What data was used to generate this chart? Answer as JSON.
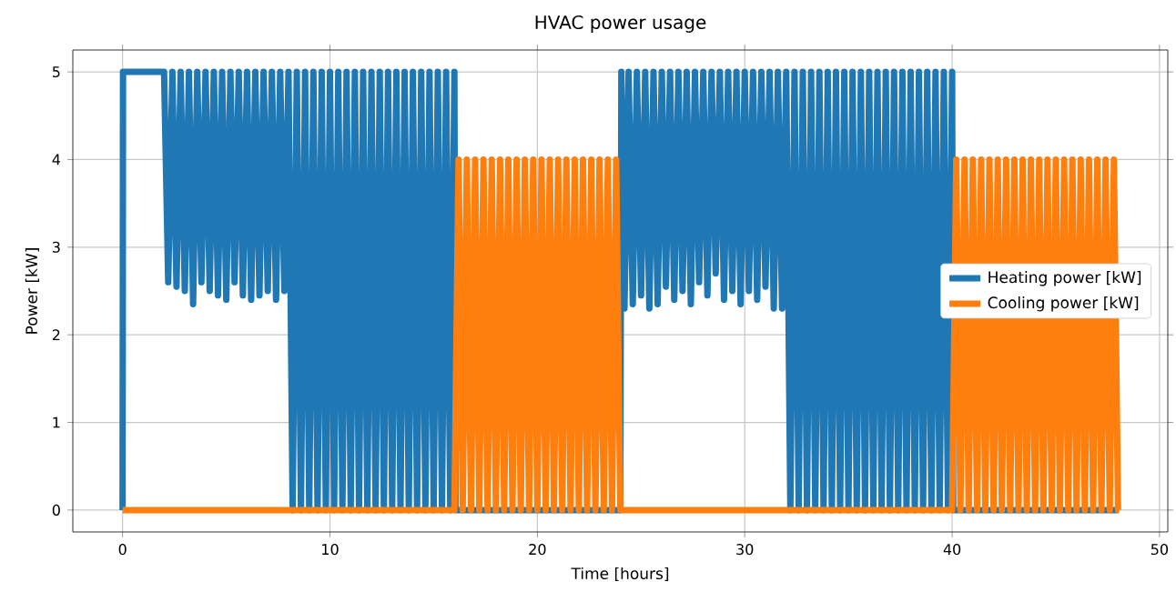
{
  "chart_data": {
    "type": "line",
    "title": "HVAC power usage",
    "xlabel": "Time [hours]",
    "ylabel": "Power [kW]",
    "xlim": [
      -2.4,
      50.4
    ],
    "ylim": [
      -0.25,
      5.25
    ],
    "xticks": [
      0,
      10,
      20,
      30,
      40,
      50
    ],
    "yticks": [
      0,
      1,
      2,
      3,
      4,
      5
    ],
    "grid": true,
    "legend": "right",
    "marker": "none",
    "line_style": "solid",
    "series": [
      {
        "name": "Heating power [kW]",
        "color": "#1f77b4",
        "x": [
          0,
          0.02,
          2,
          2.2,
          2.4,
          2.6,
          2.8,
          3,
          3.2,
          3.4,
          3.6,
          3.8,
          4,
          4.2,
          4.4,
          4.6,
          4.8,
          5,
          5.2,
          5.4,
          5.6,
          5.8,
          6,
          6.2,
          6.4,
          6.6,
          6.8,
          7,
          7.2,
          7.4,
          7.6,
          7.8,
          8,
          8.2,
          8.4,
          8.6,
          8.8,
          9,
          9.2,
          9.4,
          9.6,
          9.8,
          10,
          10.2,
          10.4,
          10.6,
          10.8,
          11,
          11.2,
          11.4,
          11.6,
          11.8,
          12,
          12.2,
          12.4,
          12.6,
          12.8,
          13,
          13.2,
          13.4,
          13.6,
          13.8,
          14,
          14.2,
          14.4,
          14.6,
          14.8,
          15,
          15.2,
          15.4,
          15.6,
          15.8,
          16,
          16.05,
          24,
          24.05,
          24.2,
          24.4,
          24.6,
          24.8,
          25,
          25.2,
          25.4,
          25.6,
          25.8,
          26,
          26.2,
          26.4,
          26.6,
          26.8,
          27,
          27.2,
          27.4,
          27.6,
          27.8,
          28,
          28.2,
          28.4,
          28.6,
          28.8,
          29,
          29.2,
          29.4,
          29.6,
          29.8,
          30,
          30.2,
          30.4,
          30.6,
          30.8,
          31,
          31.2,
          31.4,
          31.6,
          31.8,
          32,
          32.2,
          32.4,
          32.6,
          32.8,
          33,
          33.2,
          33.4,
          33.6,
          33.8,
          34,
          34.2,
          34.4,
          34.6,
          34.8,
          35,
          35.2,
          35.4,
          35.6,
          35.8,
          36,
          36.2,
          36.4,
          36.6,
          36.8,
          37,
          37.2,
          37.4,
          37.6,
          37.8,
          38,
          38.2,
          38.4,
          38.6,
          38.8,
          39,
          39.2,
          39.4,
          39.6,
          39.8,
          40,
          40.05,
          48
        ],
        "values": [
          0,
          5,
          5,
          2.6,
          5,
          2.55,
          5,
          2.5,
          5,
          2.35,
          5,
          2.6,
          5,
          2.5,
          5,
          2.45,
          5,
          2.4,
          5,
          2.6,
          5,
          2.45,
          5,
          2.4,
          5,
          2.45,
          5,
          2.5,
          5,
          2.4,
          5,
          2.5,
          5,
          0,
          5,
          0,
          5,
          0,
          5,
          0,
          5,
          0,
          5,
          0,
          5,
          0,
          5,
          0,
          5,
          0,
          5,
          0,
          5,
          0,
          5,
          0,
          5,
          0,
          5,
          0,
          5,
          0,
          5,
          0,
          5,
          0,
          5,
          0,
          5,
          0,
          5,
          0,
          5,
          0,
          0,
          5,
          2.3,
          5,
          2.35,
          5,
          2.45,
          5,
          2.3,
          5,
          2.35,
          5,
          2.55,
          5,
          2.4,
          5,
          2.5,
          5,
          2.35,
          5,
          2.6,
          5,
          2.45,
          5,
          2.7,
          5,
          2.4,
          5,
          2.5,
          5,
          2.35,
          5,
          2.5,
          5,
          2.4,
          5,
          2.55,
          5,
          2.3,
          5,
          2.3,
          5,
          0,
          5,
          0,
          5,
          0,
          5,
          0,
          5,
          0,
          5,
          0,
          5,
          0,
          5,
          0,
          5,
          0,
          5,
          0,
          5,
          0,
          5,
          0,
          5,
          0,
          5,
          0,
          5,
          0,
          5,
          0,
          5,
          0,
          5,
          0,
          5,
          0,
          5,
          0,
          5,
          0,
          0
        ]
      },
      {
        "name": "Cooling power [kW]",
        "color": "#ff7f0e",
        "x": [
          0,
          16,
          16.2,
          16.4,
          16.6,
          16.8,
          17,
          17.2,
          17.4,
          17.6,
          17.8,
          18,
          18.2,
          18.4,
          18.6,
          18.8,
          19,
          19.2,
          19.4,
          19.6,
          19.8,
          20,
          20.2,
          20.4,
          20.6,
          20.8,
          21,
          21.2,
          21.4,
          21.6,
          21.8,
          22,
          22.2,
          22.4,
          22.6,
          22.8,
          23,
          23.2,
          23.4,
          23.6,
          23.8,
          24,
          24.05,
          40,
          40.2,
          40.4,
          40.6,
          40.8,
          41,
          41.2,
          41.4,
          41.6,
          41.8,
          42,
          42.2,
          42.4,
          42.6,
          42.8,
          43,
          43.2,
          43.4,
          43.6,
          43.8,
          44,
          44.2,
          44.4,
          44.6,
          44.8,
          45,
          45.2,
          45.4,
          45.6,
          45.8,
          46,
          46.2,
          46.4,
          46.6,
          46.8,
          47,
          47.2,
          47.4,
          47.6,
          47.8,
          48,
          48.05
        ],
        "values": [
          0,
          0,
          4,
          0,
          4,
          0,
          4,
          0,
          4,
          0,
          4,
          0,
          4,
          0,
          4,
          0,
          4,
          0,
          4,
          0,
          4,
          0,
          4,
          0,
          4,
          0,
          4,
          0,
          4,
          0,
          4,
          0,
          4,
          0,
          4,
          0,
          4,
          0,
          4,
          0,
          4,
          0,
          0,
          0,
          4,
          0,
          4,
          0,
          4,
          0,
          4,
          0,
          4,
          0,
          4,
          0,
          4,
          0,
          4,
          0,
          4,
          0,
          4,
          0,
          4,
          0,
          4,
          0,
          4,
          0,
          4,
          0,
          4,
          0,
          4,
          0,
          4,
          0,
          4,
          0,
          4,
          0,
          4,
          0,
          0
        ]
      }
    ]
  }
}
